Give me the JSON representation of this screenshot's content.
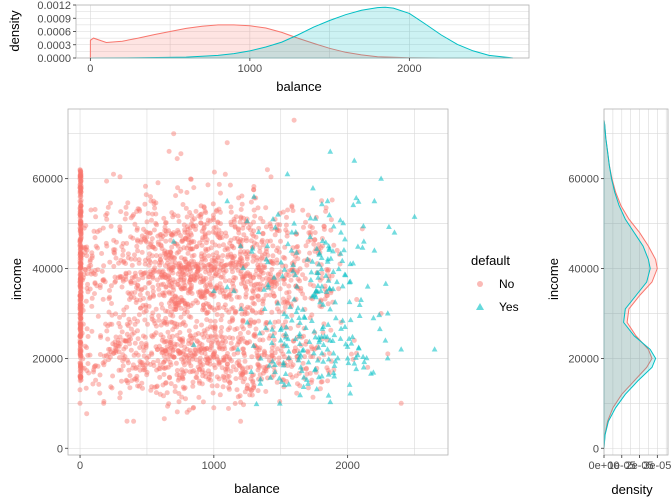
{
  "colors": {
    "no": "#F8766D",
    "yes": "#00BFC4",
    "grid": "#d9d9d9",
    "panel_border": "#b3b3b3"
  },
  "legend": {
    "title": "default",
    "items": [
      {
        "label": "No",
        "shape": "circle",
        "color": "#F8766D"
      },
      {
        "label": "Yes",
        "shape": "triangle",
        "color": "#00BFC4"
      }
    ]
  },
  "chart_data": [
    {
      "type": "area",
      "panel": "top-marginal-density",
      "xlabel": "balance",
      "ylabel": "density",
      "xlim": [
        -90,
        2750
      ],
      "ylim": [
        0,
        0.0012
      ],
      "x_ticks": [
        0,
        1000,
        2000
      ],
      "x_tick_labels": [
        "0",
        "1000",
        "2000"
      ],
      "y_ticks": [
        0,
        0.0003,
        0.0006,
        0.0009,
        0.0012
      ],
      "y_tick_labels": [
        "0.0000",
        "0.0003",
        "0.0006",
        "0.0009",
        "0.0012"
      ],
      "series": [
        {
          "name": "No",
          "color": "#F8766D",
          "x": [
            0,
            20,
            100,
            200,
            300,
            400,
            500,
            600,
            700,
            800,
            900,
            1000,
            1100,
            1200,
            1300,
            1400,
            1500,
            1600,
            1700,
            1800,
            1900,
            2000,
            2100,
            2200,
            2300,
            2400,
            2500,
            2550
          ],
          "y": [
            0.0004,
            0.00045,
            0.00035,
            0.00038,
            0.00045,
            0.00053,
            0.0006,
            0.00067,
            0.00072,
            0.00075,
            0.00075,
            0.00073,
            0.00068,
            0.00058,
            0.00045,
            0.00033,
            0.00022,
            0.00013,
            7e-05,
            3e-05,
            1.5e-05,
            6e-06,
            3e-06,
            1e-06,
            0,
            0,
            0,
            0
          ]
        },
        {
          "name": "Yes",
          "color": "#00BFC4",
          "x": [
            0,
            300,
            600,
            800,
            900,
            1000,
            1100,
            1200,
            1300,
            1400,
            1500,
            1600,
            1700,
            1800,
            1850,
            1900,
            2000,
            2100,
            2200,
            2300,
            2400,
            2500,
            2600,
            2650
          ],
          "y": [
            0,
            5e-06,
            2e-05,
            6e-05,
            0.0001,
            0.00016,
            0.00025,
            0.00036,
            0.00052,
            0.0007,
            0.00085,
            0.00098,
            0.00108,
            0.00114,
            0.00115,
            0.00113,
            0.00101,
            0.00077,
            0.00052,
            0.00031,
            0.00016,
            6e-05,
            2e-05,
            0
          ]
        }
      ]
    },
    {
      "type": "scatter",
      "panel": "main",
      "xlabel": "balance",
      "ylabel": "income",
      "xlim": [
        -90,
        2750
      ],
      "ylim": [
        -1500,
        75500
      ],
      "x_ticks": [
        0,
        1000,
        2000
      ],
      "x_tick_labels": [
        "0",
        "1000",
        "2000"
      ],
      "y_ticks": [
        0,
        20000,
        40000,
        60000
      ],
      "y_tick_labels": [
        "0",
        "20000",
        "40000",
        "60000"
      ],
      "grid": true,
      "series": [
        {
          "name": "No",
          "color": "#F8766D",
          "shape": "circle",
          "points": [
            [
              0,
              62000
            ],
            [
              0,
              58000
            ],
            [
              0,
              55000
            ],
            [
              0,
              52000
            ],
            [
              0,
              49000
            ],
            [
              0,
              46000
            ],
            [
              0,
              43000
            ],
            [
              0,
              40000
            ],
            [
              0,
              37000
            ],
            [
              0,
              34000
            ],
            [
              0,
              31000
            ],
            [
              0,
              28000
            ],
            [
              0,
              25000
            ],
            [
              0,
              22000
            ],
            [
              0,
              19000
            ],
            [
              0,
              16000
            ],
            [
              0,
              13000
            ],
            [
              0,
              10000
            ],
            [
              0,
              60000
            ],
            [
              0,
              45000
            ],
            [
              200,
              45000
            ],
            [
              300,
              38000
            ],
            [
              400,
              52000
            ],
            [
              500,
              20000
            ],
            [
              600,
              42000
            ],
            [
              700,
              48000
            ],
            [
              800,
              22000
            ],
            [
              900,
              35000
            ],
            [
              1000,
              40000
            ],
            [
              1100,
              18000
            ],
            [
              1200,
              45000
            ],
            [
              1300,
              25000
            ],
            [
              250,
              61000
            ],
            [
              350,
              15000
            ],
            [
              450,
              33000
            ],
            [
              550,
              55000
            ],
            [
              650,
              28000
            ],
            [
              750,
              40000
            ],
            [
              850,
              58000
            ],
            [
              950,
              19000
            ],
            [
              1050,
              50000
            ],
            [
              1150,
              38000
            ],
            [
              1250,
              30000
            ],
            [
              1350,
              42000
            ],
            [
              1450,
              20000
            ],
            [
              1550,
              48000
            ],
            [
              1650,
              35000
            ],
            [
              1750,
              22000
            ],
            [
              1850,
              15000
            ],
            [
              1950,
              28000
            ],
            [
              2050,
              24000
            ],
            [
              2150,
              18000
            ],
            [
              2250,
              30000
            ],
            [
              2400,
              10000
            ],
            [
              600,
              12000
            ],
            [
              800,
              8000
            ],
            [
              1000,
              9000
            ],
            [
              1200,
              6000
            ],
            [
              400,
              6000
            ],
            [
              700,
              70000
            ],
            [
              1100,
              68000
            ],
            [
              1400,
              62000
            ],
            [
              1600,
              73000
            ],
            [
              300,
              27000
            ],
            [
              500,
              47000
            ],
            [
              900,
              52000
            ],
            [
              1300,
              14000
            ],
            [
              1700,
              42000
            ],
            [
              1800,
              33000
            ],
            [
              2300,
              21000
            ]
          ]
        },
        {
          "name": "Yes",
          "color": "#00BFC4",
          "shape": "triangle",
          "points": [
            [
              2500,
              51500
            ],
            [
              2400,
              22000
            ],
            [
              2650,
              22000
            ],
            [
              2300,
              30000
            ],
            [
              2200,
              44000
            ],
            [
              2100,
              33000
            ],
            [
              2000,
              20000
            ],
            [
              1950,
              48000
            ],
            [
              1900,
              16000
            ],
            [
              1850,
              55000
            ],
            [
              1800,
              35000
            ],
            [
              1750,
              26000
            ],
            [
              1700,
              42000
            ],
            [
              1650,
              18000
            ],
            [
              1600,
              50000
            ],
            [
              1550,
              61000
            ],
            [
              1500,
              24000
            ],
            [
              1450,
              38000
            ],
            [
              1400,
              45000
            ],
            [
              1350,
              20000
            ],
            [
              1300,
              56000
            ],
            [
              1250,
              28000
            ],
            [
              1200,
              45000
            ],
            [
              1150,
              35000
            ],
            [
              2050,
              64000
            ],
            [
              1870,
              66000
            ],
            [
              2250,
              60000
            ],
            [
              2350,
              48000
            ],
            [
              2150,
              36000
            ],
            [
              1980,
              27000
            ],
            [
              1780,
              39000
            ],
            [
              1680,
              29000
            ],
            [
              1580,
              44000
            ],
            [
              1480,
              52000
            ],
            [
              1380,
              31000
            ],
            [
              1280,
              17000
            ],
            [
              1180,
              22000
            ],
            [
              2120,
              18000
            ],
            [
              2020,
              41000
            ],
            [
              1920,
              37000
            ],
            [
              1820,
              23000
            ],
            [
              1720,
              47000
            ],
            [
              1620,
              36000
            ],
            [
              1520,
              19000
            ],
            [
              1420,
              28000
            ],
            [
              1000,
              35000
            ],
            [
              700,
              46000
            ],
            [
              850,
              23000
            ],
            [
              1100,
              55000
            ],
            [
              2200,
              55000
            ]
          ]
        }
      ]
    },
    {
      "type": "area",
      "panel": "right-marginal-density",
      "xlabel": "density",
      "ylabel": "income",
      "ylim": [
        -1500,
        75500
      ],
      "xlim": [
        0,
        3.6e-05
      ],
      "y_ticks": [
        0,
        20000,
        40000,
        60000
      ],
      "y_tick_labels": [
        "0",
        "20000",
        "40000",
        "60000"
      ],
      "x_tick_labels": [
        "0e+00",
        "1e-05",
        "2e-05",
        "3e-05"
      ],
      "series": [
        {
          "name": "No",
          "color": "#F8766D",
          "y": [
            0,
            3000,
            6000,
            9000,
            12000,
            15000,
            18000,
            20000,
            22000,
            25000,
            28000,
            31000,
            34000,
            37000,
            40000,
            42000,
            45000,
            48000,
            51000,
            54000,
            57000,
            60000,
            63000,
            66000,
            69000,
            72000,
            73000
          ],
          "x": [
            0,
            5e-07,
            2e-06,
            5e-06,
            1e-05,
            1.7e-05,
            2.4e-05,
            2.7e-05,
            2.5e-05,
            1.8e-05,
            1.3e-05,
            1.4e-05,
            2e-05,
            2.7e-05,
            3e-05,
            2.9e-05,
            2.5e-05,
            2e-05,
            1.4e-05,
            9.5e-06,
            6.5e-06,
            4.5e-06,
            3e-06,
            2e-06,
            1e-06,
            4e-07,
            0
          ]
        },
        {
          "name": "Yes",
          "color": "#00BFC4",
          "y": [
            0,
            3000,
            6000,
            9000,
            12000,
            15000,
            18000,
            20000,
            22000,
            25000,
            28000,
            31000,
            34000,
            37000,
            40000,
            42000,
            45000,
            48000,
            51000,
            54000,
            57000,
            60000,
            63000,
            66000,
            69000,
            72000,
            73000
          ],
          "x": [
            0,
            6e-07,
            2.5e-06,
            6.5e-06,
            1.2e-05,
            1.9e-05,
            2.7e-05,
            2.9e-05,
            2.6e-05,
            1.7e-05,
            1.1e-05,
            1.2e-05,
            1.8e-05,
            2.4e-05,
            2.6e-05,
            2.5e-05,
            2.2e-05,
            1.7e-05,
            1.2e-05,
            8.5e-06,
            6e-06,
            4.2e-06,
            3e-06,
            2e-06,
            1e-06,
            4e-07,
            0
          ]
        }
      ]
    }
  ]
}
